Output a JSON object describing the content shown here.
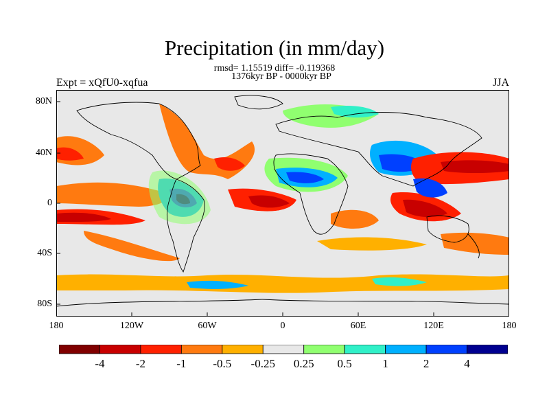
{
  "title": "Precipitation (in mm/day)",
  "stats": "rmsd= 1.15519 diff= -0.119368",
  "period": "1376kyr BP - 0000kyr BP",
  "expt": "Expt = xQfU0-xqfua",
  "season": "JJA",
  "lat_labels": [
    "80N",
    "40N",
    "0",
    "40S",
    "80S"
  ],
  "lon_labels": [
    "180",
    "120W",
    "60W",
    "0",
    "60E",
    "120E",
    "180"
  ],
  "colorbar": {
    "labels": [
      "-4",
      "-2",
      "-1",
      "-0.5",
      "-0.25",
      "0.25",
      "0.5",
      "1",
      "2",
      "4"
    ],
    "colors": [
      "#800000",
      "#c80000",
      "#ff2000",
      "#ff7a10",
      "#ffb000",
      "#e8e8e8",
      "#90ff70",
      "#30f0c8",
      "#00b0ff",
      "#0040ff",
      "#000090"
    ]
  }
}
